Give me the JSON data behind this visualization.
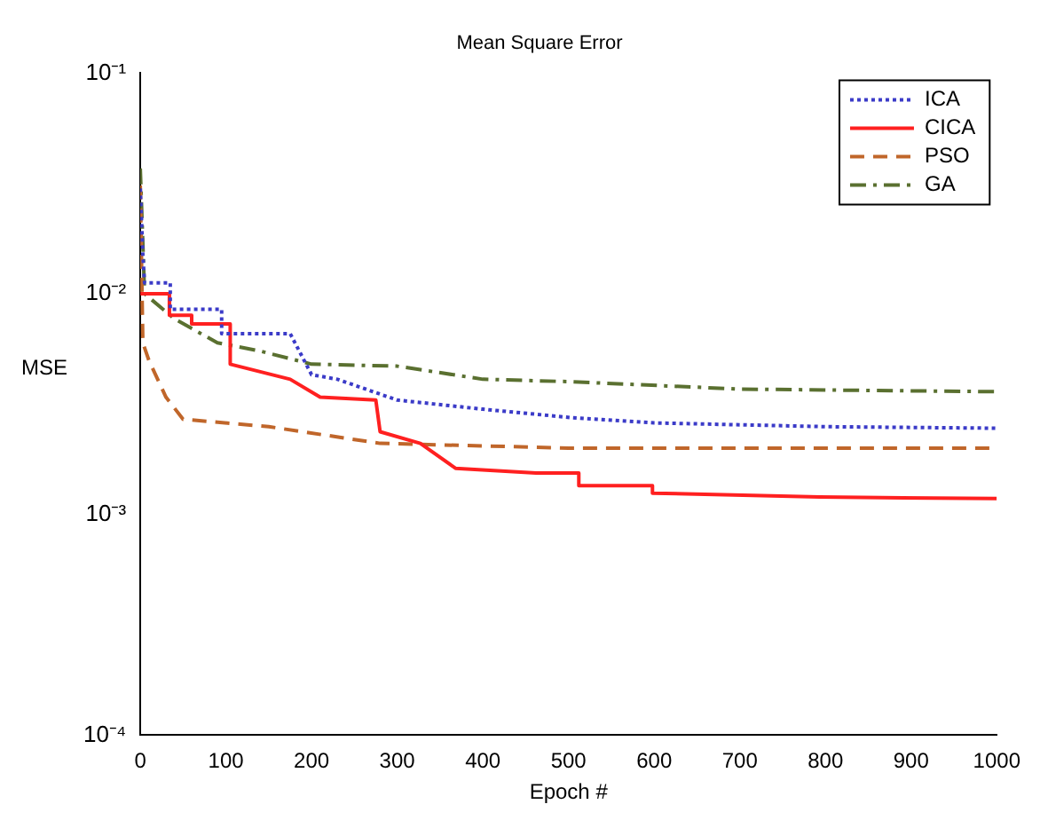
{
  "chart_data": {
    "type": "line",
    "title": "Mean Square Error",
    "xlabel": "Epoch #",
    "ylabel": "MSE",
    "log": "y",
    "xlim": [
      0,
      1000
    ],
    "xticks": [
      0,
      100,
      200,
      300,
      400,
      500,
      600,
      700,
      800,
      900,
      1000
    ],
    "ylim": [
      0.0001,
      0.1
    ],
    "yticks": [
      {
        "value": 0.0001,
        "label": "10⁻⁴"
      },
      {
        "value": 0.001,
        "label": "10⁻³"
      },
      {
        "value": 0.01,
        "label": "10⁻²"
      },
      {
        "value": 0.1,
        "label": "10⁻¹"
      }
    ],
    "grid": false,
    "legend": "top right",
    "marker": "none",
    "series": [
      {
        "name": "ICA",
        "color": "#3b3bc8",
        "line_style": "dotted",
        "x": [
          0,
          3,
          5,
          35,
          35,
          95,
          95,
          175,
          200,
          230,
          300,
          400,
          502,
          600,
          800,
          1000
        ],
        "values": [
          0.03,
          0.015,
          0.0112,
          0.0112,
          0.0085,
          0.0085,
          0.0066,
          0.0066,
          0.0043,
          0.0041,
          0.0033,
          0.003,
          0.00275,
          0.0026,
          0.0025,
          0.00246
        ]
      },
      {
        "name": "CICA",
        "color": "#ff2020",
        "line_style": "solid",
        "x": [
          0,
          34,
          34,
          60,
          60,
          105,
          105,
          175,
          210,
          275,
          280,
          327,
          368,
          368,
          462,
          512,
          512,
          598,
          598,
          793,
          1000
        ],
        "values": [
          0.01,
          0.01,
          0.008,
          0.008,
          0.0073,
          0.0073,
          0.0048,
          0.0041,
          0.0034,
          0.0033,
          0.00237,
          0.0021,
          0.00162,
          0.00162,
          0.00154,
          0.00154,
          0.00135,
          0.00135,
          0.00125,
          0.0012,
          0.00118
        ]
      },
      {
        "name": "PSO",
        "color": "#c0662a",
        "line_style": "dashed",
        "x": [
          0,
          3,
          10,
          30,
          50,
          150,
          280,
          500,
          800,
          1000
        ],
        "values": [
          0.031,
          0.006,
          0.005,
          0.0034,
          0.0027,
          0.0025,
          0.0021,
          0.002,
          0.002,
          0.002
        ]
      },
      {
        "name": "GA",
        "color": "#5a7030",
        "line_style": "dashdot",
        "x": [
          0,
          5,
          40,
          90,
          140,
          200,
          300,
          400,
          500,
          700,
          1000
        ],
        "values": [
          0.037,
          0.01,
          0.0077,
          0.006,
          0.0055,
          0.0048,
          0.0047,
          0.0041,
          0.004,
          0.0037,
          0.0036
        ]
      }
    ]
  }
}
